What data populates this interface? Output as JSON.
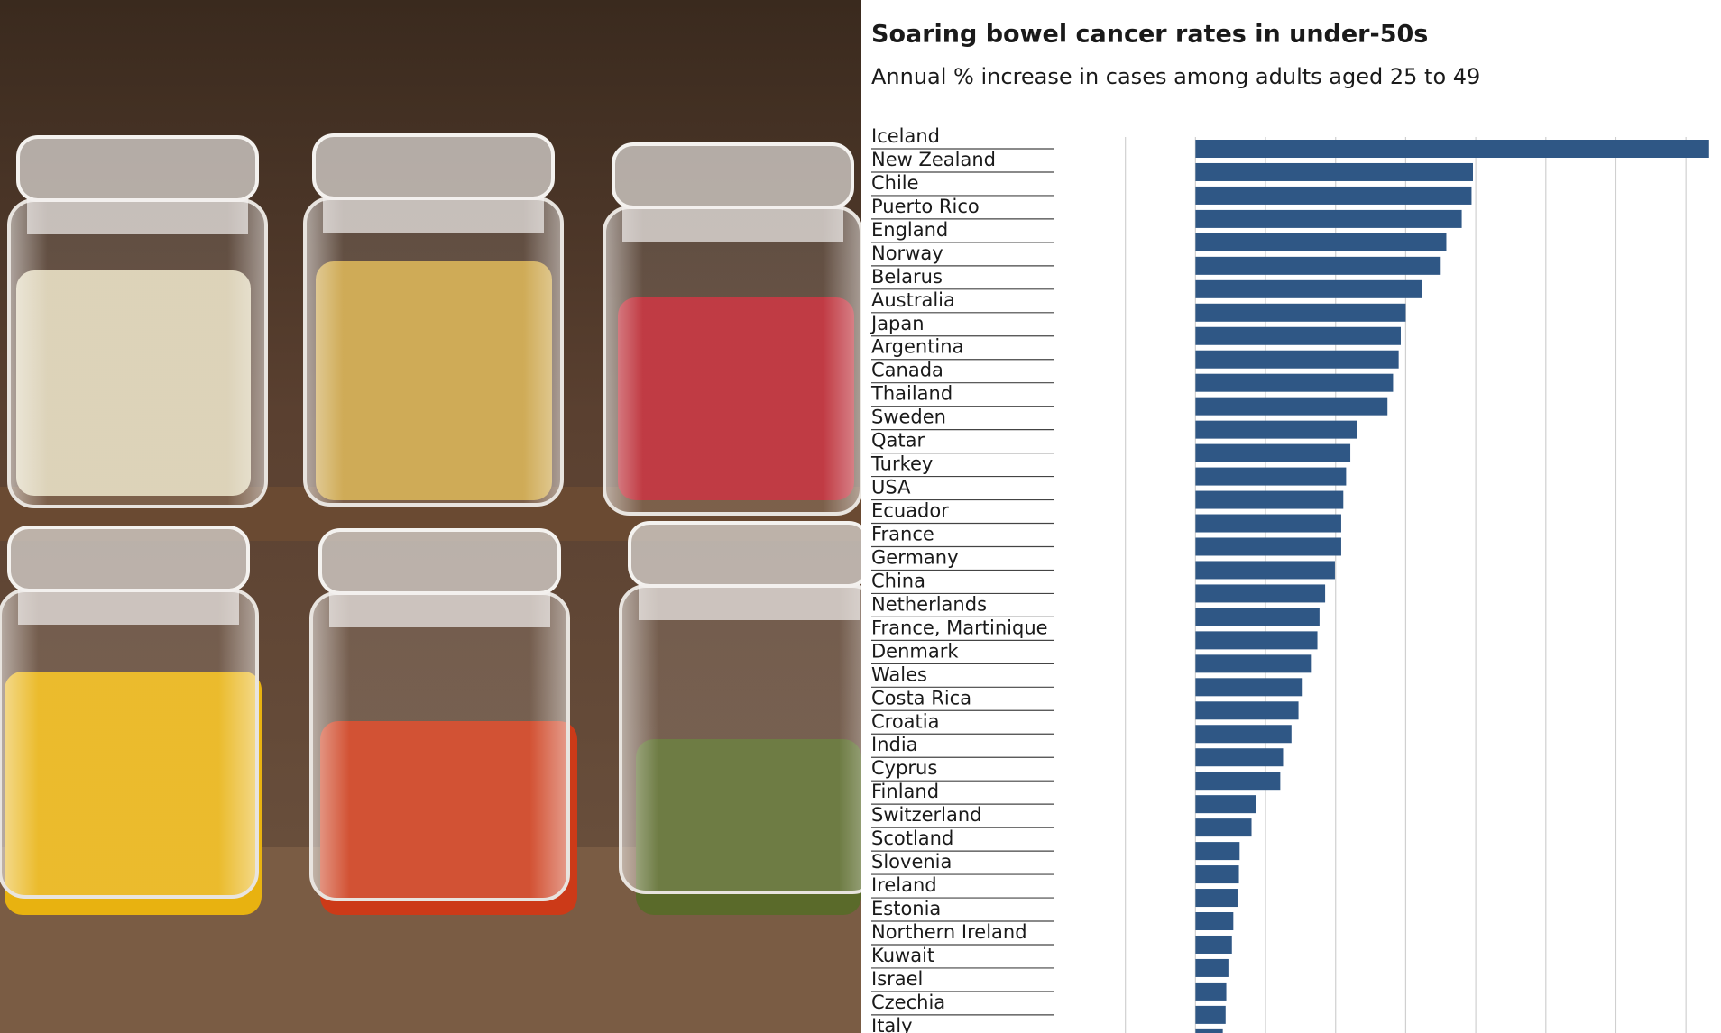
{
  "chart_data": {
    "type": "bar",
    "orientation": "horizontal",
    "title": "Soaring bowel cancer rates in under-50s",
    "subtitle": "Annual % increase in cases among adults aged 25 to 49",
    "categories": [
      "Iceland",
      "New Zealand",
      "Chile",
      "Puerto Rico",
      "England",
      "Norway",
      "Belarus",
      "Australia",
      "Japan",
      "Argentina",
      "Canada",
      "Thailand",
      "Sweden",
      "Qatar",
      "Turkey",
      "USA",
      "Ecuador",
      "France",
      "Germany",
      "China",
      "Netherlands",
      "France, Martinique",
      "Denmark",
      "Wales",
      "Costa Rica",
      "Croatia",
      "India",
      "Cyprus",
      "Finland",
      "Switzerland",
      "Scotland",
      "Slovenia",
      "Ireland",
      "Estonia",
      "Northern Ireland",
      "Kuwait",
      "Israel",
      "Czechia",
      "Italy"
    ],
    "values": [
      7.33,
      3.96,
      3.94,
      3.8,
      3.58,
      3.5,
      3.23,
      3.0,
      2.93,
      2.9,
      2.82,
      2.74,
      2.3,
      2.21,
      2.15,
      2.11,
      2.08,
      2.08,
      1.99,
      1.85,
      1.77,
      1.74,
      1.66,
      1.53,
      1.47,
      1.37,
      1.25,
      1.21,
      0.87,
      0.8,
      0.63,
      0.62,
      0.6,
      0.54,
      0.52,
      0.47,
      0.44,
      0.43,
      0.39
    ],
    "color": "#2f5785",
    "xlim": [
      -2,
      7.5
    ],
    "xticks": [
      -1,
      0,
      1,
      2,
      3,
      4,
      5,
      6,
      7
    ],
    "grid": true
  }
}
